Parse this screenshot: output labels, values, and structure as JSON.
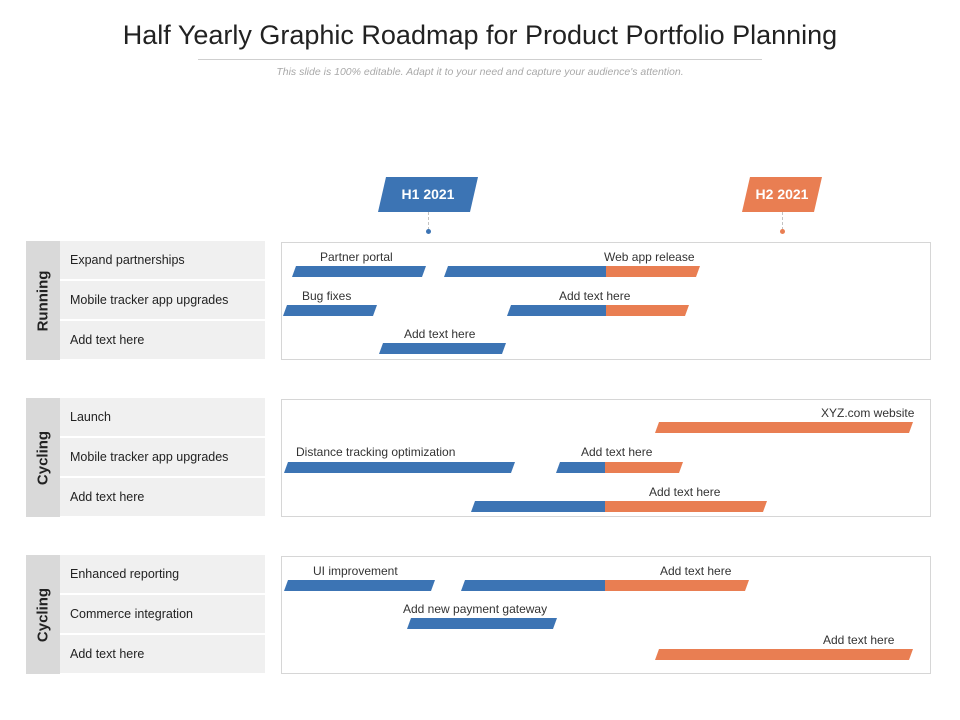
{
  "title": "Half Yearly Graphic Roadmap for Product Portfolio Planning",
  "subtitle": "This slide is 100% editable. Adapt it to your need and capture your audience's attention.",
  "colors": {
    "blue": "#3c74b4",
    "orange": "#e97e52",
    "side": "#d9d9d9",
    "row": "#f0f0f0"
  },
  "periods": [
    {
      "label": "H1 2021",
      "color": "#3c74b4"
    },
    {
      "label": "H2 2021",
      "color": "#e97e52"
    }
  ],
  "groups": [
    {
      "name": "Running",
      "rows": [
        "Expand partnerships",
        "Mobile tracker app upgrades",
        "Add text here"
      ],
      "labels": [
        "Partner portal",
        "Web app release",
        "Bug fixes",
        "Add text here",
        "Add text here"
      ]
    },
    {
      "name": "Cycling",
      "rows": [
        "Launch",
        "Mobile tracker app upgrades",
        "Add text here"
      ],
      "labels": [
        "XYZ.com website",
        "Distance tracking optimization",
        "Add text here",
        "Add text here"
      ]
    },
    {
      "name": "Cycling",
      "rows": [
        "Enhanced reporting",
        "Commerce integration",
        "Add text here"
      ],
      "labels": [
        "UI improvement",
        "Add text here",
        "Add new payment gateway",
        "Add text here"
      ]
    }
  ]
}
